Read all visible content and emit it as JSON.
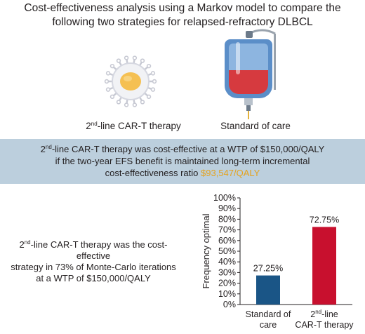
{
  "title": {
    "line1": "Cost-effectiveness analysis using a Markov model to compare the",
    "line2": "following two strategies for relapsed-refractory DLBCL"
  },
  "strategies": {
    "cart": {
      "sup": "nd",
      "num": "2",
      "rest": "-line CAR-T therapy"
    },
    "soc": "Standard of care"
  },
  "finding1": {
    "line1_num": "2",
    "line1_sup": "nd",
    "line1_rest": "-line CAR-T therapy was cost-effective at a WTP of $150,000/QALY",
    "line2": "if the two-year EFS benefit is maintained long-term incremental",
    "line3_prefix": "cost-effectiveness ratio ",
    "highlight": "$93,547/QALY"
  },
  "finding2": {
    "line1_num": "2",
    "line1_sup": "nd",
    "line1_rest": "-line CAR-T therapy was the cost-effective",
    "line2": "strategy in 73% of Monte-Carlo iterations",
    "line3": "at a WTP of $150,000/QALY"
  },
  "colors": {
    "band": "#bccfdd",
    "highlight": "#e4a31e",
    "soc_bar": "#1a5586",
    "cart_bar": "#c8102e"
  },
  "chart_data": {
    "type": "bar",
    "ylabel": "Frequency optimal",
    "ylim": [
      0,
      100
    ],
    "yticks": [
      "0%",
      "10%",
      "20%",
      "30%",
      "40%",
      "50%",
      "60%",
      "70%",
      "80%",
      "90%",
      "100%"
    ],
    "categories": [
      {
        "line1": "Standard of",
        "line2": "care",
        "sup": ""
      },
      {
        "line1": "2",
        "sup": "nd",
        "line1_rest": "-line",
        "line2": "CAR-T therapy"
      }
    ],
    "values": [
      27.25,
      72.75
    ],
    "value_labels": [
      "27.25%",
      "72.75%"
    ]
  }
}
